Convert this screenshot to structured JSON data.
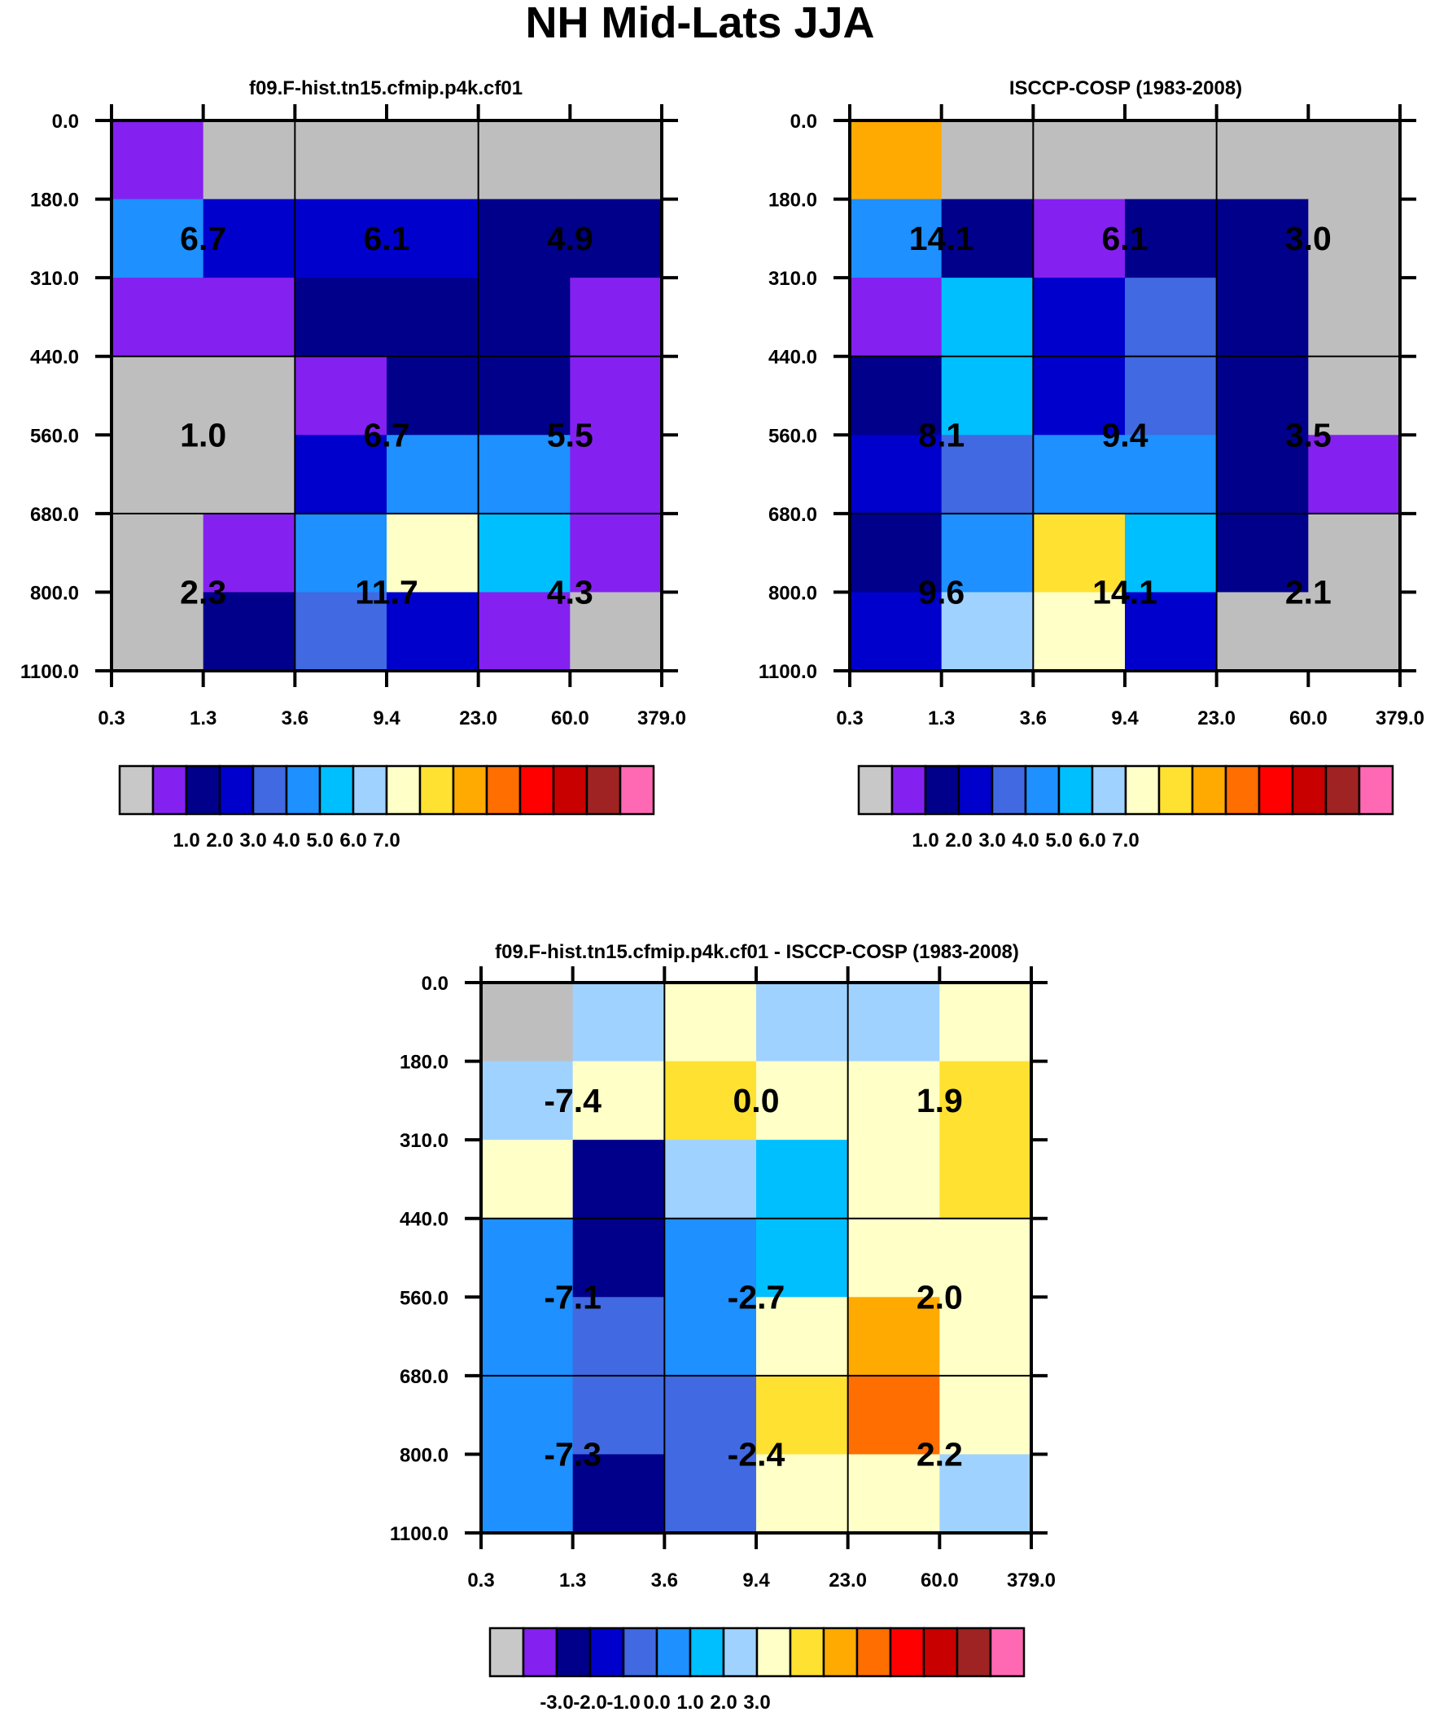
{
  "title": "NH Mid-Lats JJA",
  "palette": [
    "#bebebe",
    "#8421f0",
    "#00008b",
    "#0000cd",
    "#4169e1",
    "#1e90ff",
    "#00bfff",
    "#a0d2ff",
    "#ffffc8",
    "#ffe132",
    "#ffaa00",
    "#ff6e00",
    "#ff0000",
    "#c80000",
    "#a02323",
    "#ff69b4"
  ],
  "colorbar_gray": "#c8c8c8",
  "chart_data": [
    {
      "type": "heatmap",
      "title": "f09.F-hist.tn15.cfmip.p4k.cf01",
      "x_ticks": [
        "0.3",
        "1.3",
        "3.6",
        "9.4",
        "23.0",
        "60.0",
        "379.0"
      ],
      "y_ticks": [
        "0.0",
        "180.0",
        "310.0",
        "440.0",
        "560.0",
        "680.0",
        "800.0",
        "1100.0"
      ],
      "color_index_grid": [
        [
          1,
          0,
          0,
          0,
          0,
          0
        ],
        [
          5,
          3,
          3,
          3,
          2,
          2
        ],
        [
          1,
          1,
          2,
          2,
          2,
          1
        ],
        [
          0,
          0,
          1,
          2,
          2,
          1
        ],
        [
          0,
          0,
          3,
          5,
          5,
          1
        ],
        [
          0,
          1,
          5,
          8,
          6,
          1
        ],
        [
          0,
          2,
          4,
          3,
          1,
          0
        ]
      ],
      "group_values": [
        [
          "6.7",
          "6.1",
          "4.9"
        ],
        [
          "1.0",
          "6.7",
          "5.5"
        ],
        [
          "2.3",
          "11.7",
          "4.3"
        ]
      ],
      "colorbar_labels": [
        "1.0",
        "2.0",
        "3.0",
        "4.0",
        "5.0",
        "6.0",
        "7.0"
      ]
    },
    {
      "type": "heatmap",
      "title": "ISCCP-COSP (1983-2008)",
      "x_ticks": [
        "0.3",
        "1.3",
        "3.6",
        "9.4",
        "23.0",
        "60.0",
        "379.0"
      ],
      "y_ticks": [
        "0.0",
        "180.0",
        "310.0",
        "440.0",
        "560.0",
        "680.0",
        "800.0",
        "1100.0"
      ],
      "color_index_grid": [
        [
          10,
          0,
          0,
          0,
          0,
          0
        ],
        [
          5,
          2,
          1,
          2,
          2,
          0
        ],
        [
          1,
          6,
          3,
          4,
          2,
          0
        ],
        [
          2,
          6,
          3,
          4,
          2,
          0
        ],
        [
          3,
          4,
          5,
          5,
          2,
          1
        ],
        [
          2,
          5,
          9,
          6,
          2,
          0
        ],
        [
          3,
          7,
          8,
          3,
          0,
          0
        ]
      ],
      "group_values": [
        [
          "14.1",
          "6.1",
          "3.0"
        ],
        [
          "8.1",
          "9.4",
          "3.5"
        ],
        [
          "9.6",
          "14.1",
          "2.1"
        ]
      ],
      "colorbar_labels": [
        "1.0",
        "2.0",
        "3.0",
        "4.0",
        "5.0",
        "6.0",
        "7.0"
      ]
    },
    {
      "type": "heatmap",
      "title": "f09.F-hist.tn15.cfmip.p4k.cf01 - ISCCP-COSP (1983-2008)",
      "x_ticks": [
        "0.3",
        "1.3",
        "3.6",
        "9.4",
        "23.0",
        "60.0",
        "379.0"
      ],
      "y_ticks": [
        "0.0",
        "180.0",
        "310.0",
        "440.0",
        "560.0",
        "680.0",
        "800.0",
        "1100.0"
      ],
      "color_index_grid": [
        [
          0,
          7,
          8,
          7,
          7,
          8
        ],
        [
          7,
          8,
          9,
          8,
          8,
          9
        ],
        [
          8,
          2,
          7,
          6,
          8,
          9
        ],
        [
          5,
          2,
          5,
          6,
          8,
          8
        ],
        [
          5,
          4,
          5,
          8,
          10,
          8
        ],
        [
          5,
          4,
          4,
          9,
          11,
          8
        ],
        [
          5,
          2,
          4,
          8,
          8,
          7
        ]
      ],
      "group_values": [
        [
          "-7.4",
          "0.0",
          "1.9"
        ],
        [
          "-7.1",
          "-2.7",
          "2.0"
        ],
        [
          "-7.3",
          "-2.4",
          "2.2"
        ]
      ],
      "colorbar_labels": [
        "-3.0",
        "-2.0",
        "-1.0",
        "0.0",
        "1.0",
        "2.0",
        "3.0"
      ]
    }
  ]
}
